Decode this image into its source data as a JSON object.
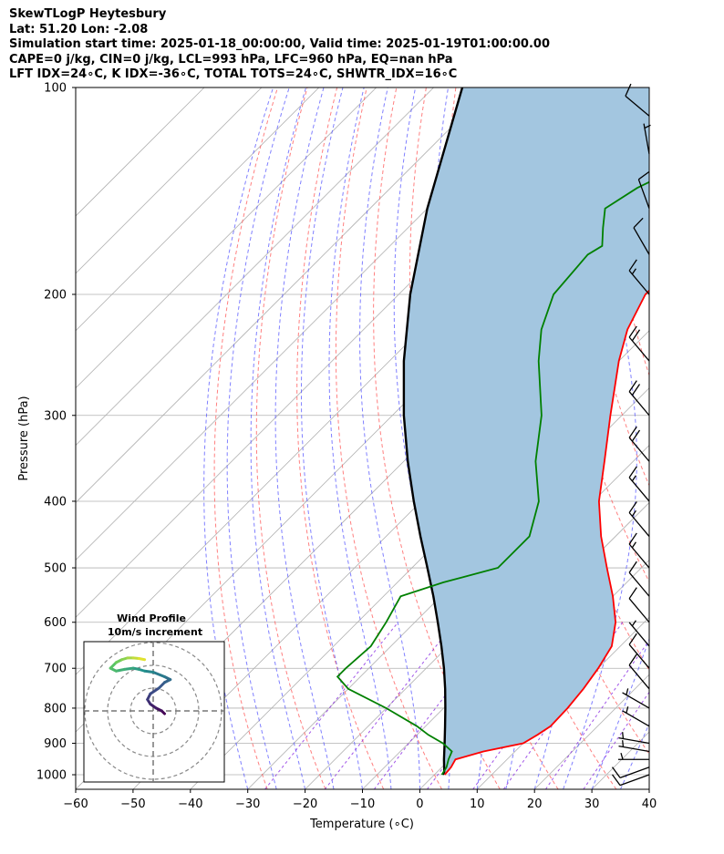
{
  "titles": {
    "line1": "SkewTLogP Heytesbury",
    "line2": "Lat: 51.20   Lon: -2.08",
    "line3": "Simulation start time: 2025-01-18_00:00:00, Valid time: 2025-01-19T01:00:00.00",
    "line4": "CAPE=0 j/kg, CIN=0 j/kg, LCL=993 hPa, LFC=960 hPa, EQ=nan hPa",
    "line5": "LFT IDX=24∘C, K IDX=-36∘C, TOTAL TOTS=24∘C, SHWTR_IDX=16∘C"
  },
  "chart_data": {
    "type": "line",
    "subtype": "skew-t log-p",
    "xlabel": "Temperature (∘C)",
    "ylabel": "Pressure (hPa)",
    "xlim": [
      -60,
      40
    ],
    "ylim": [
      1050,
      100
    ],
    "y_scale": "log",
    "x_ticks": [
      "−60",
      "−50",
      "−40",
      "−30",
      "−20",
      "−10",
      "0",
      "10",
      "20",
      "30",
      "40"
    ],
    "x_tick_values": [
      -60,
      -50,
      -40,
      -30,
      -20,
      -10,
      0,
      10,
      20,
      30,
      40
    ],
    "y_ticks": [
      "100",
      "200",
      "300",
      "400",
      "500",
      "600",
      "700",
      "800",
      "900",
      "1000"
    ],
    "y_tick_values": [
      100,
      200,
      300,
      400,
      500,
      600,
      700,
      800,
      900,
      1000
    ],
    "grid": true,
    "colors": {
      "temperature": "#ff0000",
      "dewpoint": "#008000",
      "parcel": "#000000",
      "shading": "#a3c6e0",
      "dry_adiabats": "#ff6060",
      "moist_adiabats": "#5555ff",
      "mixing_ratio": "#8a2be2",
      "isotherms": "#b0b0b0"
    },
    "series": [
      {
        "role": "temperature",
        "pressure": [
          1000,
          975,
          950,
          925,
          900,
          875,
          850,
          800,
          750,
          700,
          650,
          600,
          550,
          500,
          450,
          400,
          350,
          300,
          250,
          225,
          200,
          190,
          175,
          160,
          150,
          140,
          135,
          120,
          110,
          100
        ],
        "temperature": [
          1.8,
          1.6,
          1.0,
          4.5,
          10.0,
          11.0,
          11.8,
          11.6,
          11.0,
          10.0,
          8.5,
          5.0,
          0.0,
          -6.0,
          -12.5,
          -19.0,
          -25.0,
          -32.0,
          -40.0,
          -44.0,
          -47.0,
          -47.0,
          -47.0,
          -48.0,
          -46.5,
          -44.0,
          -44.0,
          -44.0,
          -48.0,
          -50.0
        ]
      },
      {
        "role": "dewpoint",
        "pressure": [
          1000,
          975,
          950,
          925,
          900,
          875,
          850,
          800,
          750,
          720,
          700,
          650,
          600,
          550,
          525,
          500,
          450,
          400,
          350,
          300,
          250,
          225,
          200,
          175,
          170,
          160,
          150,
          140,
          135,
          120,
          110,
          100
        ],
        "temperature": [
          1.3,
          0.8,
          -0.2,
          -1.0,
          -4.0,
          -8.0,
          -11.5,
          -20.0,
          -30.0,
          -34.0,
          -34.0,
          -33.5,
          -35.0,
          -37.0,
          -32.0,
          -25.0,
          -25.0,
          -29.5,
          -37.0,
          -44.0,
          -54.0,
          -59.0,
          -63.0,
          -64.0,
          -63.0,
          -66.0,
          -69.0,
          -67.0,
          -65.0,
          -66.0,
          -67.0,
          -68.0
        ]
      },
      {
        "role": "parcel",
        "pressure": [
          1000,
          990,
          950,
          900,
          850,
          800,
          750,
          700,
          650,
          600,
          550,
          500,
          450,
          400,
          350,
          300,
          250,
          200,
          150,
          100
        ],
        "temperature": [
          1.5,
          1.2,
          -1.0,
          -3.7,
          -6.6,
          -9.7,
          -13.1,
          -16.9,
          -21.2,
          -26.0,
          -31.3,
          -37.3,
          -44.0,
          -51.3,
          -59.3,
          -68.0,
          -77.5,
          -88.0,
          -100.0,
          -115.0
        ]
      }
    ],
    "wind_barbs": {
      "pressure": [
        1000,
        975,
        950,
        925,
        900,
        850,
        800,
        750,
        700,
        650,
        600,
        550,
        500,
        450,
        400,
        350,
        300,
        250,
        200,
        175,
        150,
        125,
        110
      ],
      "speed_kt": [
        10,
        10,
        5,
        5,
        5,
        5,
        5,
        10,
        10,
        5,
        10,
        10,
        15,
        15,
        15,
        20,
        20,
        20,
        15,
        10,
        10,
        5,
        10
      ],
      "direction_deg": [
        250,
        250,
        270,
        280,
        280,
        300,
        300,
        320,
        320,
        320,
        320,
        320,
        320,
        320,
        320,
        320,
        320,
        320,
        320,
        330,
        340,
        350,
        310
      ]
    },
    "hodograph": {
      "title_line1": "Wind Profile",
      "title_line2": "10m/s increment",
      "ring_count": 3,
      "u": [
        2,
        1.5,
        0.5,
        -0.5,
        -1,
        -0.5,
        1,
        2,
        3,
        2,
        0,
        -1.5,
        -2.5,
        -3.5,
        -5,
        -6.5,
        -7.5,
        -6.5,
        -5.5,
        -4.5,
        -3.5,
        -2.5,
        -1.5
      ],
      "v": [
        -0.5,
        0,
        0.5,
        1.2,
        2,
        3,
        4,
        5,
        5.5,
        6,
        6.8,
        7,
        7.3,
        7.5,
        7.3,
        7,
        7.5,
        8.5,
        9,
        9.3,
        9.3,
        9.2,
        9
      ]
    }
  }
}
